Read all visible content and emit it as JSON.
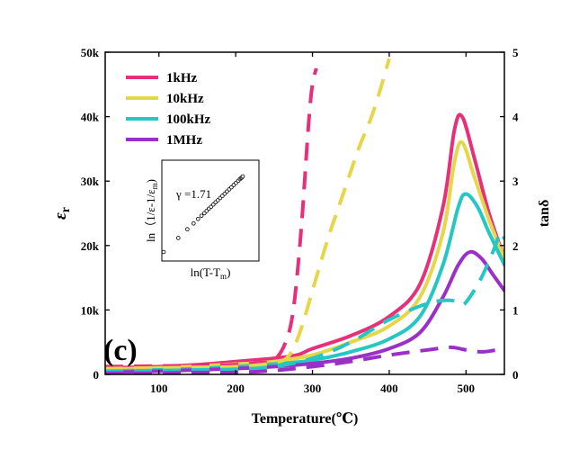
{
  "chart_data": {
    "type": "line",
    "panel_label": "(c)",
    "xlabel": "Temperature(℃)",
    "ylabel_left": "ε",
    "ylabel_left_sub": "r",
    "ylabel_right": "tanδ",
    "xlim": [
      30,
      550
    ],
    "ylim_left": [
      0,
      50000
    ],
    "ylim_right": [
      0,
      5
    ],
    "x_ticks": [
      {
        "value": 100,
        "label": "100"
      },
      {
        "value": 200,
        "label": "200"
      },
      {
        "value": 300,
        "label": "300"
      },
      {
        "value": 400,
        "label": "400"
      },
      {
        "value": 500,
        "label": "500"
      }
    ],
    "y_left_ticks": [
      {
        "value": 0,
        "label": "0"
      },
      {
        "value": 10000,
        "label": "10k"
      },
      {
        "value": 20000,
        "label": "20k"
      },
      {
        "value": 30000,
        "label": "30k"
      },
      {
        "value": 40000,
        "label": "40k"
      },
      {
        "value": 50000,
        "label": "50k"
      }
    ],
    "y_right_ticks": [
      {
        "value": 0,
        "label": "0"
      },
      {
        "value": 1,
        "label": "1"
      },
      {
        "value": 2,
        "label": "2"
      },
      {
        "value": 3,
        "label": "3"
      },
      {
        "value": 4,
        "label": "4"
      },
      {
        "value": 5,
        "label": "5"
      }
    ],
    "legend_position": "top-left",
    "series": [
      {
        "name": "1kHz",
        "color": "#e8307a",
        "permittivity": {
          "x": [
            30,
            100,
            150,
            200,
            250,
            280,
            300,
            350,
            400,
            440,
            470,
            485,
            495,
            510,
            530,
            550
          ],
          "y": [
            1000,
            1200,
            1500,
            2000,
            2500,
            3000,
            4000,
            6000,
            9000,
            14000,
            26000,
            38000,
            40000,
            34000,
            25000,
            18000
          ]
        },
        "loss": {
          "x": [
            30,
            100,
            150,
            200,
            230,
            250,
            265,
            275,
            285,
            295,
            300,
            305
          ],
          "y": [
            0.12,
            0.13,
            0.14,
            0.15,
            0.18,
            0.22,
            0.5,
            1.0,
            2.2,
            3.9,
            4.5,
            4.75
          ]
        }
      },
      {
        "name": "10kHz",
        "color": "#e5d64a",
        "permittivity": {
          "x": [
            30,
            100,
            150,
            200,
            250,
            300,
            350,
            400,
            440,
            470,
            485,
            495,
            510,
            530,
            550
          ],
          "y": [
            800,
            1000,
            1300,
            1600,
            2000,
            3000,
            5000,
            7500,
            12000,
            22000,
            33000,
            36000,
            31000,
            24000,
            18000
          ]
        },
        "loss": {
          "x": [
            30,
            100,
            150,
            200,
            250,
            270,
            285,
            300,
            320,
            340,
            360,
            380,
            400
          ],
          "y": [
            0.09,
            0.1,
            0.11,
            0.12,
            0.18,
            0.3,
            0.7,
            1.3,
            2.1,
            2.8,
            3.5,
            4.1,
            4.9
          ]
        }
      },
      {
        "name": "100kHz",
        "color": "#26c6c4",
        "permittivity": {
          "x": [
            30,
            100,
            150,
            200,
            250,
            300,
            350,
            400,
            440,
            470,
            490,
            500,
            515,
            530,
            550
          ],
          "y": [
            500,
            700,
            900,
            1200,
            1600,
            2200,
            3500,
            5500,
            9000,
            17000,
            26000,
            28000,
            26000,
            22000,
            17000
          ]
        },
        "loss": {
          "x": [
            30,
            100,
            150,
            200,
            250,
            300,
            350,
            400,
            450,
            480,
            495,
            505,
            520,
            535,
            545,
            550
          ],
          "y": [
            0.05,
            0.06,
            0.07,
            0.08,
            0.12,
            0.25,
            0.5,
            0.85,
            1.1,
            1.15,
            1.08,
            1.2,
            1.5,
            1.9,
            2.2,
            2.1
          ]
        }
      },
      {
        "name": "1MHz",
        "color": "#9b30c8",
        "permittivity": {
          "x": [
            30,
            100,
            150,
            200,
            250,
            300,
            350,
            400,
            440,
            470,
            490,
            505,
            520,
            535,
            550
          ],
          "y": [
            300,
            500,
            700,
            900,
            1200,
            1700,
            2500,
            4000,
            6500,
            12000,
            17000,
            19000,
            18000,
            15500,
            13000
          ]
        },
        "loss": {
          "x": [
            30,
            100,
            150,
            200,
            250,
            300,
            350,
            400,
            450,
            480,
            500,
            520,
            535,
            550
          ],
          "y": [
            0.02,
            0.02,
            0.03,
            0.03,
            0.06,
            0.12,
            0.2,
            0.3,
            0.38,
            0.42,
            0.38,
            0.35,
            0.37,
            0.4
          ]
        }
      }
    ],
    "inset": {
      "type": "scatter",
      "xlabel": "ln(T-T",
      "xlabel_sub": "m",
      "xlabel_end": ")",
      "ylabel": "ln（1/ε-1/ε",
      "ylabel_sub": "m",
      "ylabel_end": ")",
      "annotation": "γ =1.71",
      "x": [
        0.2,
        0.72,
        1.04,
        1.26,
        1.42,
        1.54,
        1.64,
        1.72,
        1.8,
        1.88,
        1.96,
        2.04,
        2.12,
        2.2,
        2.28,
        2.36,
        2.44,
        2.52,
        2.6,
        2.68,
        2.76,
        2.84,
        2.9,
        2.94,
        2.97,
        3.0
      ],
      "y": [
        0.33,
        1.22,
        1.77,
        2.14,
        2.42,
        2.62,
        2.79,
        2.93,
        3.07,
        3.2,
        3.34,
        3.48,
        3.61,
        3.75,
        3.89,
        4.02,
        4.16,
        4.3,
        4.43,
        4.57,
        4.71,
        4.84,
        4.95,
        5.01,
        5.06,
        5.12
      ]
    }
  }
}
